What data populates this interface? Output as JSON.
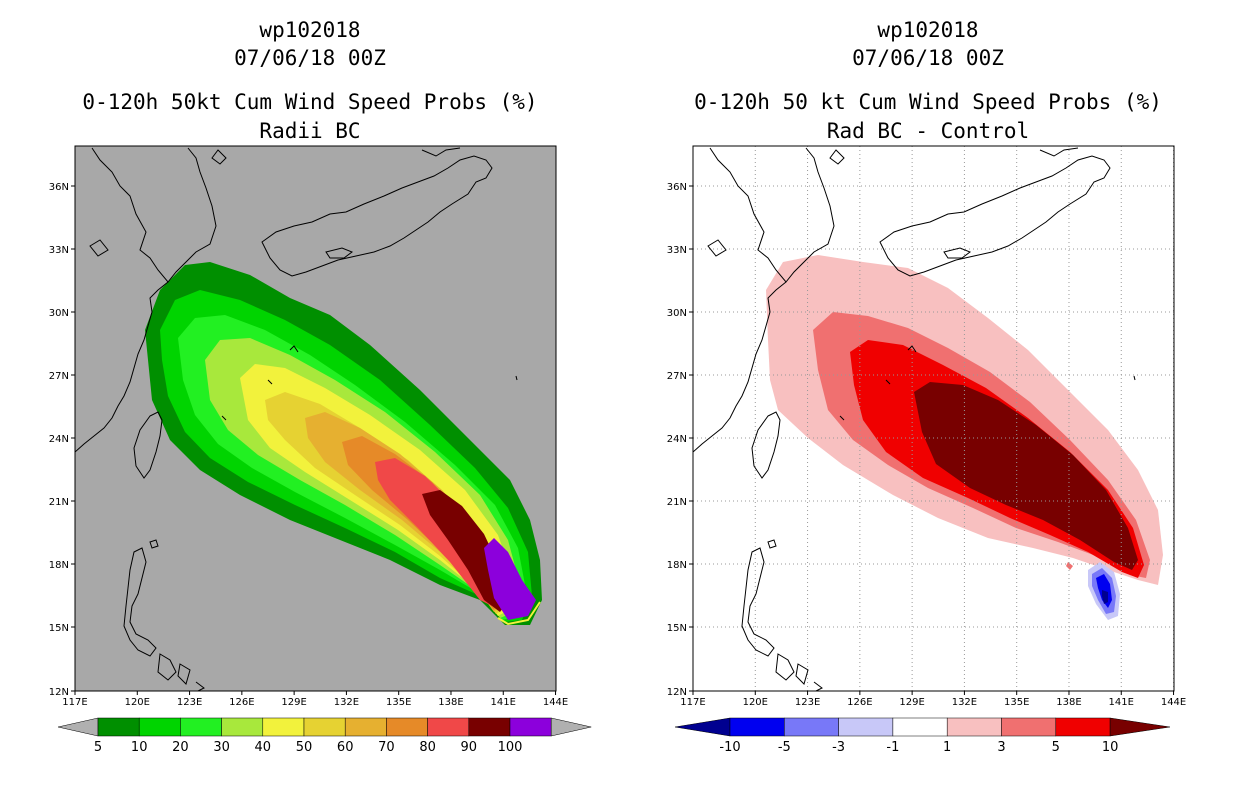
{
  "left_panel": {
    "title1": "wp102018",
    "title2": "07/06/18 00Z",
    "title3": "0-120h 50kt Cum Wind Speed Probs (%)",
    "title4": "Radii BC",
    "colorbar_labels": [
      "5",
      "10",
      "20",
      "30",
      "40",
      "50",
      "60",
      "70",
      "80",
      "90",
      "100"
    ],
    "colorbar_colors": [
      "#008f00",
      "#00d400",
      "#22f022",
      "#a8e83c",
      "#f2f23c",
      "#e6d232",
      "#e6b030",
      "#e68a28",
      "#f04848",
      "#780000",
      "#8c00dc"
    ]
  },
  "right_panel": {
    "title1": "wp102018",
    "title2": "07/06/18 00Z",
    "title3": "0-120h 50 kt Cum Wind Speed Probs (%)",
    "title4": "Rad BC - Control",
    "colorbar_labels": [
      "-10",
      "-5",
      "-3",
      "-1",
      "1",
      "3",
      "5",
      "10"
    ],
    "colorbar_colors": [
      "#000090",
      "#0000f0",
      "#7878f8",
      "#c8c8f8",
      "#ffffff",
      "#f8c0c0",
      "#f07070",
      "#f00000",
      "#780000"
    ]
  },
  "lat_labels": [
    "36N",
    "33N",
    "30N",
    "27N",
    "24N",
    "21N",
    "18N",
    "15N",
    "12N"
  ],
  "lon_labels": [
    "117E",
    "120E",
    "123E",
    "126E",
    "129E",
    "132E",
    "135E",
    "138E",
    "141E",
    "144E"
  ],
  "colors": {
    "map_gray": "#a8a8a8",
    "coast": "#000000"
  }
}
